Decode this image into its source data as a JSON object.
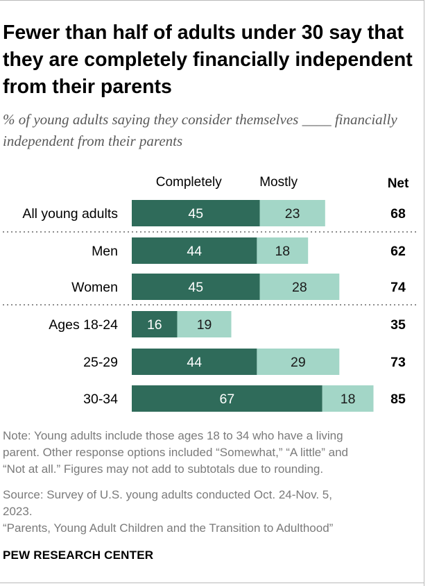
{
  "title": "Fewer than half of adults under 30 say that they are completely financially independent from their parents",
  "subtitle": "% of young adults saying they consider themselves ____ financially independent from their parents",
  "chart_data": {
    "type": "bar",
    "orientation": "horizontal",
    "stacked": true,
    "categories": [
      "All young adults",
      "Men",
      "Women",
      "Ages 18-24",
      "25-29",
      "30-34"
    ],
    "series": [
      {
        "name": "Completely",
        "values": [
          45,
          44,
          45,
          16,
          44,
          67
        ],
        "color": "#2f6b5a"
      },
      {
        "name": "Mostly",
        "values": [
          23,
          18,
          28,
          19,
          29,
          18
        ],
        "color": "#a3d6c7"
      }
    ],
    "net_label": "Net",
    "net": [
      68,
      62,
      74,
      35,
      73,
      85
    ],
    "group_separators_after": [
      "All young adults",
      "Women"
    ],
    "grid": false
  },
  "note_lines": [
    "Note: Young adults include those ages 18 to 34 who have a living",
    "parent. Other response options included “Somewhat,” “A little” and",
    "“Not at all.” Figures may not add to subtotals due to rounding."
  ],
  "source_lines": [
    "Source: Survey of U.S. young adults conducted Oct. 24-Nov. 5,",
    "2023."
  ],
  "report": "“Parents, Young Adult Children and the Transition to Adulthood”",
  "org": "PEW RESEARCH CENTER"
}
